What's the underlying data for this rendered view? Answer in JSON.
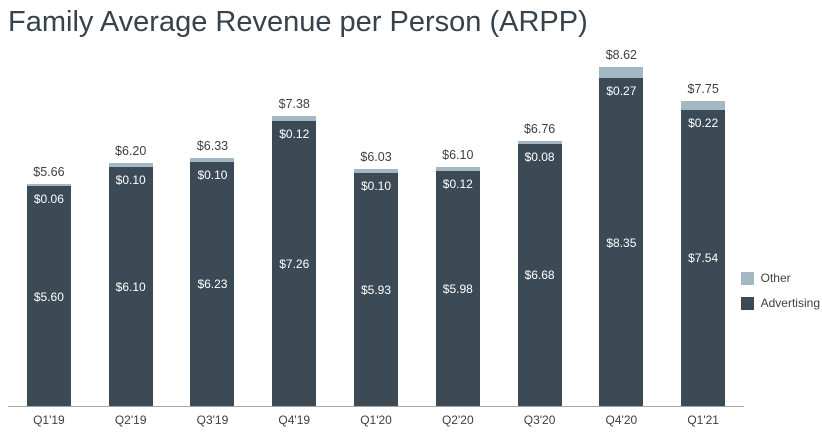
{
  "chart_data": {
    "type": "bar",
    "stacked": true,
    "title": "Family Average Revenue per Person (ARPP)",
    "categories": [
      "Q1'19",
      "Q2'19",
      "Q3'19",
      "Q4'19",
      "Q1'20",
      "Q2'20",
      "Q3'20",
      "Q4'20",
      "Q1'21"
    ],
    "series": [
      {
        "name": "Advertising",
        "color": "#3b4a55",
        "values": [
          5.6,
          6.1,
          6.23,
          7.26,
          5.93,
          5.98,
          6.68,
          8.35,
          7.54
        ]
      },
      {
        "name": "Other",
        "color": "#a3b8c3",
        "values": [
          0.06,
          0.1,
          0.1,
          0.12,
          0.1,
          0.12,
          0.08,
          0.27,
          0.22
        ]
      }
    ],
    "totals": [
      5.66,
      6.2,
      6.33,
      7.38,
      6.03,
      6.1,
      6.76,
      8.62,
      7.75
    ],
    "value_prefix": "$",
    "ylim": [
      0,
      9
    ],
    "grid": false,
    "legend": {
      "position": "right",
      "items": [
        "Other",
        "Advertising"
      ]
    }
  }
}
